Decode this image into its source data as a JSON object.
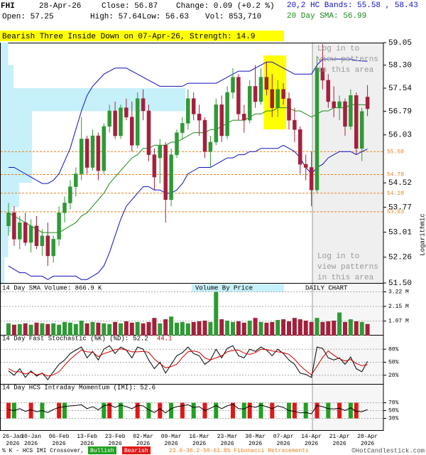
{
  "header": {
    "symbol": "FHI",
    "date": "28-Apr-26",
    "close": "Close: 56.87",
    "change": "Change: 0.09 (+0.2 %)",
    "open": "Open: 57.25",
    "high": "High: 57.64",
    "low": "Low: 56.63",
    "volume": "Vol: 853,710",
    "bands": "20,2 HC Bands: 55.58 , 58.43",
    "sma": "20 Day SMA: 56.99"
  },
  "chart_data": [
    {
      "type": "candlestick",
      "pattern_banner": "Bearish Three Inside Down on 07-Apr-26, Strength: 14.9",
      "banner_color": "#ffff00",
      "categories": [
        "26-Jan",
        null,
        null,
        null,
        "30-Jan",
        null,
        null,
        null,
        null,
        "06-Feb",
        null,
        null,
        null,
        null,
        "13-Feb",
        null,
        null,
        null,
        null,
        "23-Feb",
        null,
        null,
        null,
        null,
        "02-Mar",
        null,
        null,
        null,
        null,
        "09-Mar",
        null,
        null,
        null,
        null,
        "16-Mar",
        null,
        null,
        null,
        null,
        "23-Mar",
        null,
        null,
        null,
        null,
        "30-Mar",
        null,
        null,
        null,
        null,
        "07-Apr",
        null,
        null,
        null,
        null,
        "14-Apr",
        null,
        null,
        null,
        null,
        "21-Apr",
        null,
        null,
        null,
        null,
        "28-Apr"
      ],
      "year_label": "2026",
      "open": [
        53.2,
        53.6,
        52.8,
        53.3,
        52.7,
        53.2,
        52.6,
        52.9,
        52.3,
        52.8,
        53.6,
        53.9,
        54.4,
        54.8,
        55.9,
        55.0,
        56.0,
        54.9,
        56.3,
        56.8,
        56.0,
        56.9,
        56.6,
        55.7,
        57.2,
        56.8,
        55.4,
        55.3,
        55.7,
        54.0,
        55.4,
        56.1,
        56.4,
        57.2,
        56.7,
        56.5,
        55.5,
        55.8,
        57.0,
        56.0,
        57.4,
        57.9,
        56.7,
        56.5,
        57.6,
        57.1,
        57.9,
        57.5,
        56.9,
        57.5,
        57.2,
        56.5,
        56.2,
        55.1,
        55.0,
        54.3,
        58.2,
        57.8,
        57.1,
        56.9,
        57.1,
        56.3,
        57.3,
        55.6,
        57.25
      ],
      "high": [
        53.9,
        53.8,
        53.5,
        53.6,
        53.4,
        53.5,
        53.1,
        53.3,
        52.9,
        53.8,
        54.1,
        54.6,
        55.0,
        56.6,
        56.0,
        56.2,
        56.1,
        56.4,
        57.0,
        57.1,
        57.0,
        57.2,
        57.1,
        57.4,
        57.5,
        57.0,
        55.6,
        55.9,
        55.8,
        55.6,
        56.2,
        56.6,
        57.5,
        57.4,
        57.0,
        56.6,
        56.0,
        57.2,
        57.3,
        57.6,
        58.2,
        58.0,
        57.0,
        57.8,
        58.3,
        58.2,
        58.4,
        58.0,
        57.8,
        57.7,
        57.4,
        56.9,
        56.3,
        55.4,
        55.5,
        58.6,
        59.0,
        58.0,
        57.6,
        57.3,
        57.2,
        57.5,
        57.4,
        56.9,
        57.64
      ],
      "low": [
        52.9,
        52.6,
        52.5,
        52.6,
        52.4,
        52.5,
        52.3,
        52.0,
        52.1,
        52.6,
        53.3,
        53.7,
        54.1,
        54.6,
        54.8,
        54.9,
        54.6,
        54.8,
        56.1,
        55.9,
        55.9,
        56.5,
        55.5,
        55.6,
        56.5,
        55.2,
        54.3,
        54.5,
        53.3,
        53.8,
        55.3,
        55.9,
        56.2,
        56.5,
        56.0,
        55.3,
        55.0,
        55.7,
        55.8,
        55.9,
        57.2,
        56.5,
        56.1,
        56.4,
        56.9,
        57.0,
        57.3,
        56.6,
        56.6,
        57.0,
        56.2,
        55.8,
        54.8,
        54.6,
        53.8,
        54.2,
        57.5,
        56.9,
        56.6,
        56.5,
        56.0,
        56.2,
        55.4,
        55.2,
        56.63
      ],
      "close": [
        53.6,
        52.8,
        53.3,
        52.7,
        53.2,
        52.6,
        52.9,
        52.3,
        52.8,
        53.6,
        53.9,
        54.4,
        54.8,
        55.9,
        55.0,
        56.0,
        54.9,
        56.3,
        56.8,
        56.0,
        56.9,
        56.6,
        55.7,
        57.2,
        56.8,
        55.4,
        54.7,
        55.7,
        54.0,
        55.4,
        56.1,
        56.4,
        57.2,
        56.7,
        56.5,
        55.5,
        55.8,
        57.0,
        56.0,
        57.4,
        57.9,
        56.7,
        56.5,
        57.6,
        57.1,
        57.9,
        57.5,
        56.9,
        57.5,
        57.2,
        56.5,
        56.2,
        55.1,
        55.0,
        54.3,
        58.2,
        57.8,
        57.1,
        56.9,
        57.1,
        56.3,
        57.3,
        55.6,
        56.78,
        56.87
      ],
      "up_color": "#2e9a34",
      "down_color": "#a3203c",
      "upper_band": {
        "color": "#1010c0",
        "values": [
          55.0,
          55.0,
          54.9,
          54.8,
          54.7,
          54.6,
          54.5,
          54.5,
          54.6,
          54.8,
          55.2,
          55.6,
          56.2,
          56.8,
          57.3,
          57.6,
          57.8,
          58.0,
          58.1,
          58.2,
          58.2,
          58.2,
          58.1,
          58.0,
          57.9,
          57.8,
          57.7,
          57.6,
          57.6,
          57.6,
          57.6,
          57.6,
          57.7,
          57.7,
          57.7,
          57.7,
          57.7,
          57.7,
          57.8,
          57.9,
          58.0,
          58.1,
          58.1,
          58.1,
          58.2,
          58.3,
          58.4,
          58.4,
          58.3,
          58.2,
          58.1,
          58.0,
          58.0,
          58.0,
          58.0,
          58.3,
          58.5,
          58.5,
          58.5,
          58.5,
          58.5,
          58.5,
          58.45,
          58.44,
          58.43
        ]
      },
      "lower_band": {
        "color": "#1010c0",
        "values": [
          52.0,
          51.9,
          51.8,
          51.8,
          51.7,
          51.7,
          51.7,
          51.6,
          51.7,
          51.7,
          51.7,
          51.7,
          51.7,
          51.6,
          51.6,
          51.7,
          51.8,
          52.0,
          52.4,
          52.9,
          53.4,
          53.8,
          54.0,
          54.2,
          54.4,
          54.4,
          54.3,
          54.3,
          54.2,
          54.2,
          54.3,
          54.5,
          54.8,
          54.9,
          55.0,
          55.0,
          55.0,
          55.1,
          55.2,
          55.3,
          55.3,
          55.4,
          55.4,
          55.5,
          55.5,
          55.6,
          55.6,
          55.6,
          55.6,
          55.7,
          55.6,
          55.5,
          55.3,
          55.0,
          54.8,
          55.0,
          55.1,
          55.3,
          55.4,
          55.5,
          55.5,
          55.5,
          55.4,
          55.5,
          55.58
        ]
      },
      "sma": {
        "color": "#1a8a1a",
        "values": [
          53.6,
          53.5,
          53.4,
          53.3,
          53.2,
          53.1,
          53.0,
          53.0,
          53.0,
          53.0,
          53.1,
          53.2,
          53.3,
          53.5,
          53.6,
          53.8,
          54.0,
          54.2,
          54.5,
          54.7,
          54.9,
          55.1,
          55.3,
          55.4,
          55.6,
          55.6,
          55.7,
          55.7,
          55.7,
          55.8,
          55.8,
          55.9,
          56.0,
          56.1,
          56.1,
          56.1,
          56.2,
          56.2,
          56.3,
          56.4,
          56.5,
          56.5,
          56.5,
          56.6,
          56.7,
          56.7,
          56.8,
          56.8,
          56.9,
          56.9,
          56.9,
          56.8,
          56.8,
          56.7,
          56.6,
          56.7,
          56.8,
          56.8,
          56.9,
          56.9,
          56.9,
          57.0,
          57.0,
          57.0,
          56.99
        ]
      },
      "ylim": [
        51.5,
        59.05
      ],
      "log_scale": true,
      "yticks": [
        59.05,
        {
          "value": 58.3,
          "label": "58.30"
        },
        57.54,
        56.79,
        56.03,
        54.52,
        53.77,
        53.01,
        52.26,
        {
          "value": 51.5,
          "label": "51.50"
        }
      ],
      "fib_levels": [
        {
          "value": 55.5,
          "label": "55.50"
        },
        {
          "value": 54.78,
          "label": "54.78"
        },
        {
          "value": 54.2,
          "label": "54.20"
        },
        {
          "value": 53.63,
          "label": "53.63"
        }
      ],
      "fib_color": "#e8801e",
      "axis_note": "Logarithmic",
      "login_note": [
        "Log in to",
        "view patterns",
        "in this area"
      ],
      "volume_by_price": {
        "color": "#c6f0fa",
        "bins": [
          51.5,
          52.26,
          53.01,
          53.77,
          54.52,
          55.28,
          56.03,
          56.79,
          57.54,
          58.3,
          59.05
        ],
        "values": [
          2,
          4,
          6,
          10,
          17,
          17,
          17,
          100,
          7,
          4
        ]
      }
    },
    {
      "type": "bar",
      "title": "14 Day SMA Volume: 866.9 K",
      "subtitle": "Volume By Price",
      "note": "DAILY CHART",
      "values": [
        0.9,
        0.8,
        0.85,
        0.9,
        0.8,
        0.95,
        0.9,
        0.85,
        0.9,
        0.8,
        1.0,
        0.95,
        0.85,
        1.1,
        0.9,
        1.0,
        0.95,
        0.9,
        0.85,
        1.0,
        0.9,
        1.05,
        0.95,
        1.0,
        0.9,
        1.0,
        1.3,
        0.9,
        1.2,
        1.4,
        0.95,
        1.0,
        0.9,
        1.0,
        1.05,
        1.1,
        1.0,
        3.22,
        1.2,
        1.1,
        1.0,
        1.05,
        0.95,
        1.1,
        1.3,
        1.0,
        0.95,
        1.0,
        1.15,
        1.2,
        1.05,
        1.3,
        1.2,
        1.1,
        1.0,
        1.3,
        1.0,
        1.05,
        1.1,
        1.7,
        1.0,
        1.2,
        1.05,
        1.0,
        0.85
      ],
      "ylim": [
        0,
        3.3
      ],
      "yticks": [
        {
          "value": 3.22,
          "label": "3.22 M"
        },
        {
          "value": 2.15,
          "label": "2.15 M"
        },
        {
          "value": 1.07,
          "label": "1.07 M"
        }
      ]
    },
    {
      "type": "line",
      "title": "14 Day Fast Stochastic (%K) (%D):",
      "series": [
        {
          "color": "#000000",
          "last_label": "52.2",
          "values": [
            30,
            20,
            35,
            15,
            30,
            18,
            25,
            10,
            28,
            45,
            55,
            70,
            78,
            85,
            60,
            75,
            55,
            80,
            88,
            70,
            85,
            78,
            60,
            85,
            80,
            55,
            35,
            50,
            25,
            45,
            65,
            72,
            85,
            70,
            65,
            45,
            55,
            80,
            60,
            82,
            88,
            65,
            60,
            80,
            75,
            85,
            78,
            65,
            80,
            70,
            55,
            45,
            25,
            22,
            15,
            85,
            82,
            60,
            55,
            60,
            45,
            62,
            35,
            28,
            52.2
          ]
        },
        {
          "color": "#cc0000",
          "last_label": "44.1",
          "values": [
            35,
            28,
            28,
            23,
            27,
            21,
            24,
            18,
            21,
            28,
            43,
            57,
            68,
            78,
            74,
            73,
            63,
            70,
            74,
            79,
            81,
            78,
            74,
            74,
            75,
            73,
            57,
            47,
            37,
            40,
            45,
            61,
            74,
            76,
            73,
            60,
            55,
            60,
            65,
            74,
            77,
            78,
            71,
            68,
            72,
            80,
            79,
            76,
            74,
            72,
            68,
            57,
            42,
            31,
            21,
            41,
            61,
            76,
            66,
            58,
            53,
            56,
            47,
            42,
            44.1
          ]
        }
      ],
      "ylim": [
        0,
        100
      ],
      "yticks": [
        {
          "value": 80,
          "label": "80%"
        },
        {
          "value": 50,
          "label": "50%"
        },
        {
          "value": 20,
          "label": "20%"
        }
      ]
    },
    {
      "type": "line",
      "title": "14 Day HCS Intraday Momentum (IMI): 52.6",
      "series": [
        {
          "color": "#000000",
          "values": [
            52,
            50,
            55,
            48,
            52,
            47,
            50,
            45,
            53,
            58,
            60,
            62,
            63,
            65,
            55,
            60,
            52,
            62,
            65,
            58,
            64,
            60,
            55,
            63,
            62,
            52,
            45,
            55,
            44,
            55,
            60,
            62,
            65,
            58,
            60,
            50,
            56,
            63,
            55,
            62,
            66,
            55,
            54,
            62,
            58,
            64,
            60,
            55,
            62,
            58,
            50,
            48,
            44,
            45,
            42,
            63,
            60,
            55,
            54,
            56,
            50,
            57,
            48,
            47,
            52.6
          ]
        }
      ],
      "signals": {
        "bullish": {
          "color": "#22a022",
          "indices": [
            1,
            6,
            10,
            17,
            20,
            25,
            29,
            33,
            37,
            42,
            45,
            50,
            53,
            57,
            61
          ]
        },
        "bearish": {
          "color": "#e01818",
          "indices": [
            0,
            4,
            9,
            18,
            23,
            27,
            31,
            35,
            40,
            43,
            47,
            51,
            55,
            59,
            62
          ]
        }
      },
      "ylim": [
        0,
        100
      ],
      "yticks": [
        {
          "value": 70,
          "label": "70%"
        },
        {
          "value": 50,
          "label": "50%"
        },
        {
          "value": 30,
          "label": "30%"
        }
      ]
    }
  ],
  "footer": {
    "legend_label": "% K - HCS IMI Crossover,",
    "bullish": "Bullish",
    "bearish": "Bearish",
    "fib_note": "23.6-38.2-50-61.8% Fibonacci Retracements",
    "credit": "©HotCandlestick.com"
  }
}
